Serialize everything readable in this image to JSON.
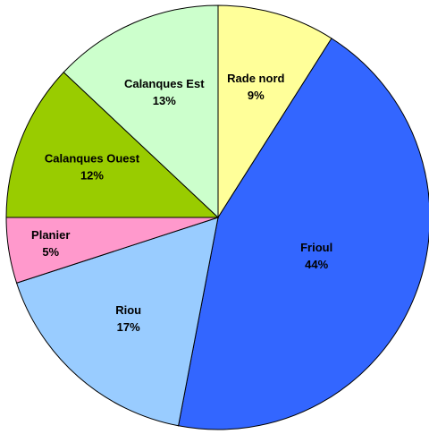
{
  "chart_data": {
    "type": "pie",
    "categories": [
      "Rade nord",
      "Frioul",
      "Riou",
      "Planier",
      "Calanques Ouest",
      "Calanques Est"
    ],
    "values": [
      9,
      44,
      17,
      5,
      12,
      13
    ],
    "value_labels": [
      "9%",
      "44%",
      "17%",
      "5%",
      "12%",
      "13%"
    ],
    "colors": [
      "#ffff99",
      "#3366ff",
      "#99ccff",
      "#ff99cc",
      "#99cc00",
      "#ccffcc"
    ]
  }
}
